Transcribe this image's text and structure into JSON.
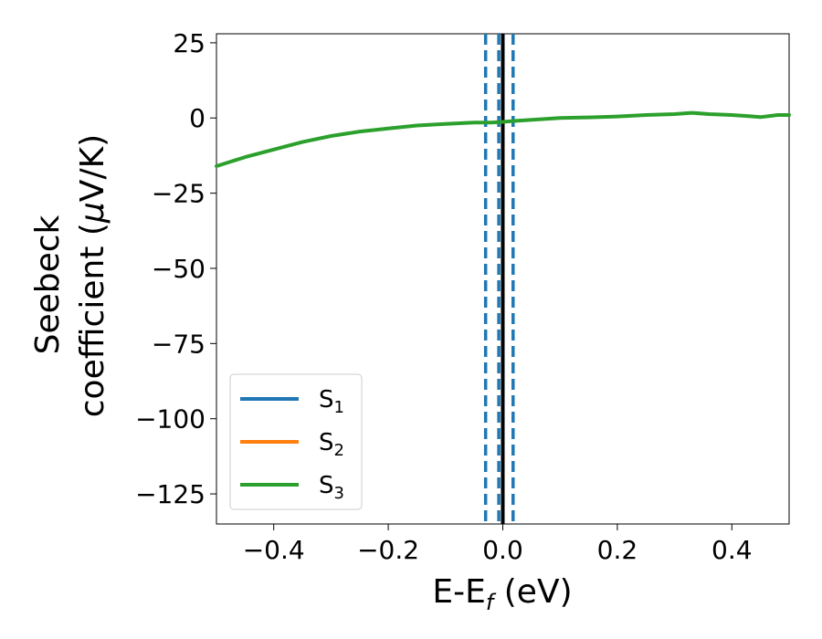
{
  "chart_data": {
    "type": "line",
    "xlabel": "E-E",
    "xlabel_sub": "f",
    "xlabel_unit": " (eV)",
    "ylabel_line1": "Seebeck",
    "ylabel_line2_pre": "coefficient  (",
    "ylabel_mu": "μ",
    "ylabel_line2_post": "V/K)",
    "xlim": [
      -0.5,
      0.5
    ],
    "ylim": [
      -135,
      28
    ],
    "xticks": [
      -0.4,
      -0.2,
      0.0,
      0.2,
      0.4
    ],
    "xtick_labels": [
      "−0.4",
      "−0.2",
      "0.0",
      "0.2",
      "0.4"
    ],
    "yticks": [
      25,
      0,
      -25,
      -50,
      -75,
      -100,
      -125
    ],
    "ytick_labels": [
      "25",
      "0",
      "−25",
      "−50",
      "−75",
      "−100",
      "−125"
    ],
    "grid": false,
    "legend_position": "lower-left",
    "series": [
      {
        "name": "S",
        "sub": "1",
        "color": "#1f77b4",
        "x": [],
        "y": []
      },
      {
        "name": "S",
        "sub": "2",
        "color": "#ff7f0e",
        "x": [],
        "y": []
      },
      {
        "name": "S",
        "sub": "3",
        "color": "#2ca02c",
        "x": [
          -0.5,
          -0.45,
          -0.4,
          -0.35,
          -0.3,
          -0.25,
          -0.2,
          -0.15,
          -0.1,
          -0.05,
          -0.02,
          0.0,
          0.02,
          0.06,
          0.1,
          0.15,
          0.2,
          0.25,
          0.3,
          0.33,
          0.36,
          0.4,
          0.43,
          0.45,
          0.48,
          0.5
        ],
        "y": [
          -16,
          -13,
          -10.5,
          -8,
          -6,
          -4.5,
          -3.5,
          -2.5,
          -2,
          -1.5,
          -1.5,
          -1.3,
          -1,
          -0.5,
          0,
          0.2,
          0.5,
          1,
          1.3,
          1.7,
          1.3,
          1.0,
          0.6,
          0.3,
          1.0,
          1.0
        ]
      }
    ],
    "vertical_lines": [
      {
        "x": -0.03,
        "style": "dashed",
        "color": "#1f77b4"
      },
      {
        "x": -0.007,
        "style": "dashed",
        "color": "#1f77b4"
      },
      {
        "x": 0.0,
        "style": "solid",
        "color": "#000000"
      },
      {
        "x": 0.018,
        "style": "dashed",
        "color": "#1f77b4"
      }
    ]
  }
}
